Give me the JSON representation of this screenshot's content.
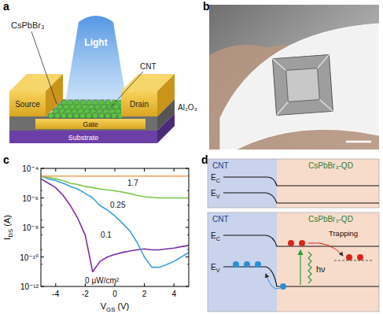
{
  "panels": {
    "a": {
      "label": "a",
      "material": "CsPbBr₃",
      "light": "Light",
      "source": "Source",
      "drain": "Drain",
      "gate": "Gate",
      "cnt": "CNT",
      "dielectric": "Al₂O₃",
      "substrate": "Substrate"
    },
    "b": {
      "label": "b"
    },
    "c": {
      "label": "c"
    },
    "d": {
      "label": "d",
      "region_left": "CNT",
      "region_right": "CsPbBr₃-QD",
      "conduction": {
        "base": "E",
        "sub": "C"
      },
      "valence": {
        "base": "E",
        "sub": "V"
      },
      "trapping": "Trapping",
      "photon": "hν"
    }
  },
  "chart_data": {
    "type": "line",
    "x_label": {
      "base": "V",
      "sub": "GS",
      "rest": " (V)"
    },
    "y_label": {
      "base": "I",
      "sub": "DS",
      "rest": " (A)"
    },
    "unit_label": "μW/cm²",
    "log": "y",
    "grid": false,
    "xlim": [
      -5,
      5
    ],
    "xticks": [
      -4,
      -2,
      0,
      2,
      4
    ],
    "ylim": [
      1e-12,
      0.0001
    ],
    "yticks": [
      {
        "value": 1e-12,
        "label": "10⁻¹²"
      },
      {
        "value": 1e-10,
        "label": "10⁻¹⁰"
      },
      {
        "value": 1e-08,
        "label": "10⁻⁸"
      },
      {
        "value": 1e-06,
        "label": "10⁻⁶"
      },
      {
        "value": 0.0001,
        "label": "10⁻⁴"
      }
    ],
    "x": [
      -5,
      -4.5,
      -4,
      -3.5,
      -3,
      -2.5,
      -2,
      -1.5,
      -1,
      -0.5,
      0,
      0.5,
      1,
      1.5,
      2,
      2.5,
      3,
      3.5,
      4,
      4.5,
      5
    ],
    "series": [
      {
        "name": "0",
        "color": "#7b2fa8",
        "values": [
          2e-05,
          1e-05,
          5e-06,
          1.5e-06,
          3e-07,
          4e-08,
          3e-09,
          1e-11,
          5e-11,
          1e-10,
          1.5e-10,
          2e-10,
          2.5e-10,
          3e-10,
          3.5e-10,
          3e-10,
          3e-10,
          3.5e-10,
          4e-10,
          5e-10,
          6e-10
        ]
      },
      {
        "name": "0.1",
        "color": "#3aa0d8",
        "values": [
          3e-05,
          2e-05,
          1.5e-05,
          1e-05,
          6e-06,
          4e-06,
          2e-06,
          1e-06,
          3e-07,
          1.5e-07,
          6e-08,
          2e-08,
          6e-09,
          1e-09,
          1e-10,
          2e-11,
          2e-11,
          3e-11,
          5e-11,
          1e-10,
          2e-10
        ]
      },
      {
        "name": "0.25",
        "color": "#7ac943",
        "values": [
          3e-05,
          2.5e-05,
          2e-05,
          1.5e-05,
          1e-05,
          8e-06,
          6e-06,
          5e-06,
          4e-06,
          3.5e-06,
          3e-06,
          2.5e-06,
          2e-06,
          1.5e-06,
          1.2e-06,
          1.1e-06,
          1e-06,
          1e-06,
          1e-06,
          1e-06,
          1e-06
        ]
      },
      {
        "name": "1.7",
        "color": "#f5a05a",
        "values": [
          3e-05,
          3e-05,
          3e-05,
          3e-05,
          3e-05,
          3e-05,
          3e-05,
          3e-05,
          3e-05,
          3e-05,
          3e-05,
          3e-05,
          3e-05,
          3e-05,
          3e-05,
          3e-05,
          3e-05,
          3e-05,
          3e-05,
          3e-05,
          3e-05
        ]
      }
    ]
  }
}
